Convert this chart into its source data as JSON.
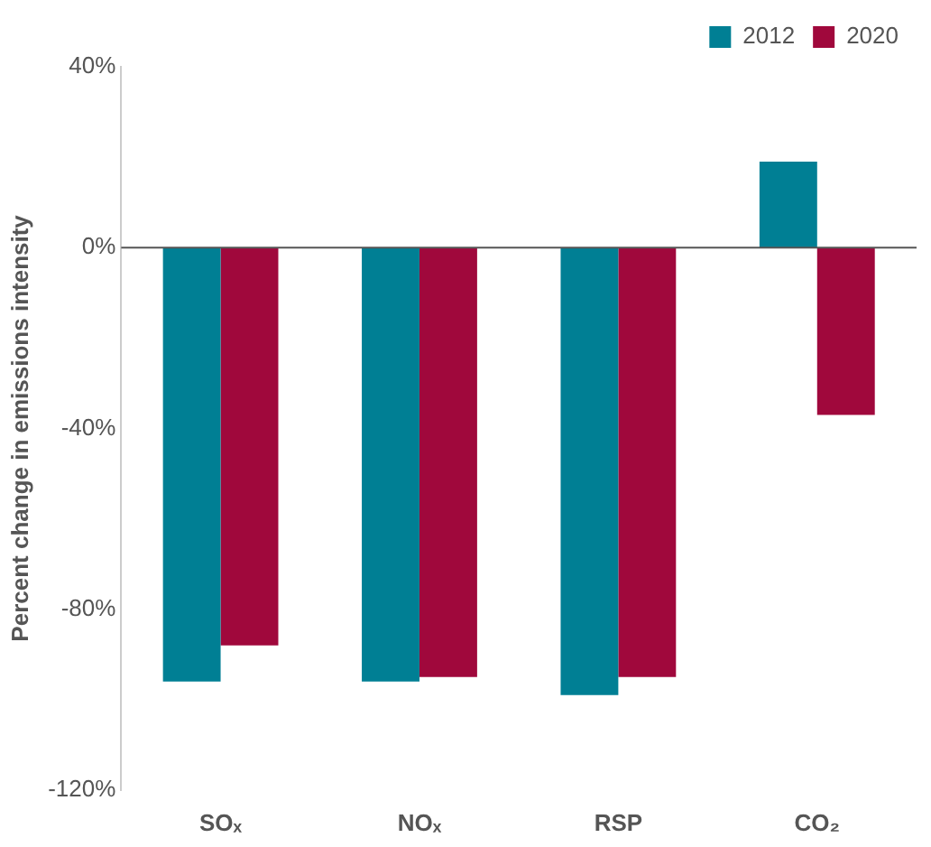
{
  "chart_data": {
    "type": "bar",
    "ylabel": "Percent change in emissions intensity",
    "categories": [
      "SOₓ",
      "NOₓ",
      "RSP",
      "CO₂"
    ],
    "series": [
      {
        "name": "2012",
        "color": "#007f94",
        "values": [
          -96,
          -96,
          -99,
          19
        ]
      },
      {
        "name": "2020",
        "color": "#a0083c",
        "values": [
          -88,
          -95,
          -95,
          -37
        ]
      }
    ],
    "ylim": [
      -120,
      40
    ],
    "yticks": [
      {
        "value": -120,
        "label": "-120%"
      },
      {
        "value": -80,
        "label": "-80%"
      },
      {
        "value": -40,
        "label": "-40%"
      },
      {
        "value": 0,
        "label": "0%"
      },
      {
        "value": 40,
        "label": "40%"
      }
    ],
    "ref_lines": [
      {
        "axis": "y",
        "value": 0,
        "color": "#555555"
      }
    ],
    "grid": false,
    "legend": "top right"
  }
}
